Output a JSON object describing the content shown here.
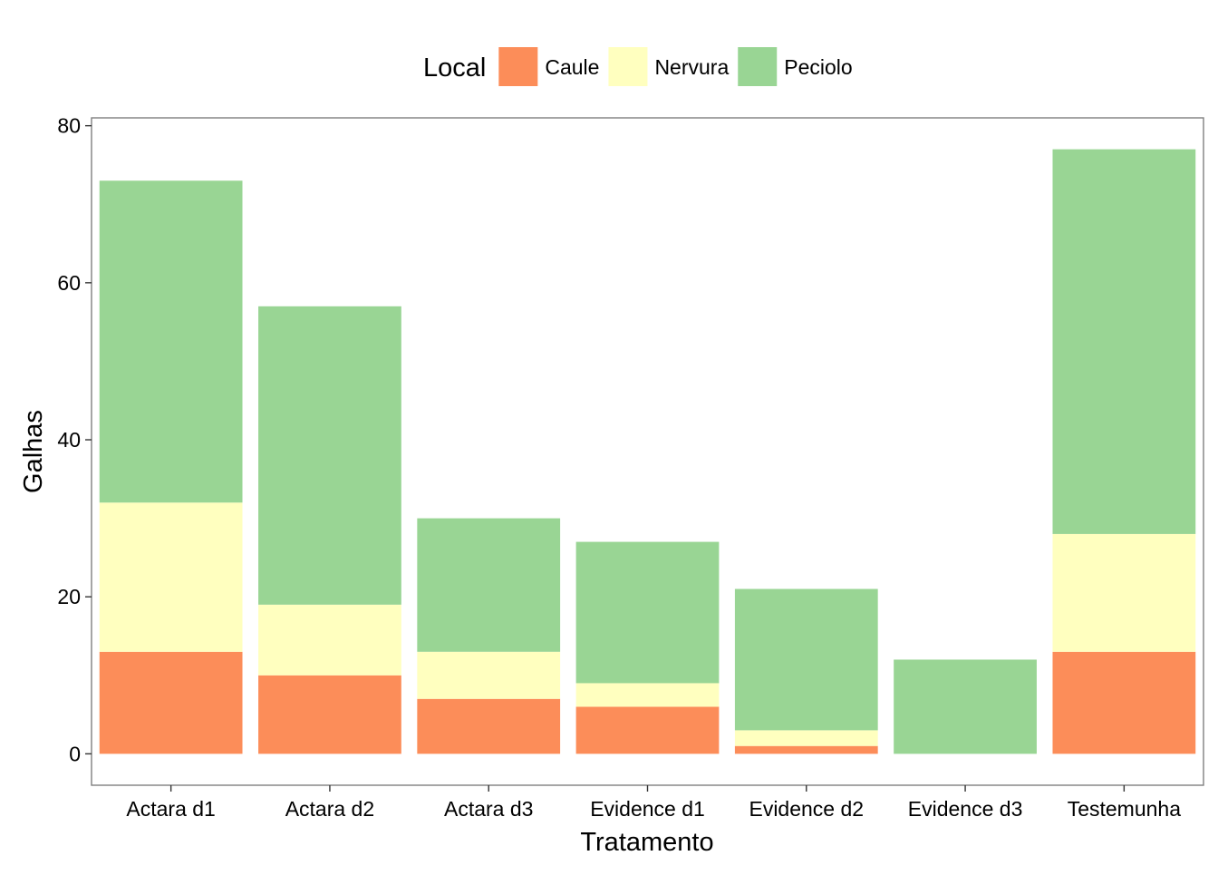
{
  "chart_data": {
    "type": "bar",
    "stacked": true,
    "xlabel": "Tratamento",
    "ylabel": "Galhas",
    "categories": [
      "Actara d1",
      "Actara d2",
      "Actara d3",
      "Evidence d1",
      "Evidence d2",
      "Evidence d3",
      "Testemunha"
    ],
    "ylim": [
      -4,
      81
    ],
    "yticks": [
      0,
      20,
      40,
      60,
      80
    ],
    "ytick_labels": [
      "0",
      "20",
      "40",
      "60",
      "80"
    ],
    "grid": false,
    "legend": {
      "title": "Local",
      "position": "top"
    },
    "series": [
      {
        "name": "Caule",
        "color": "#FC8D59",
        "values": [
          13,
          10,
          7,
          6,
          1,
          0,
          13
        ]
      },
      {
        "name": "Nervura",
        "color": "#FFFFBF",
        "values": [
          19,
          9,
          6,
          3,
          2,
          0,
          15
        ]
      },
      {
        "name": "Peciolo",
        "color": "#99D594",
        "values": [
          41,
          38,
          17,
          18,
          18,
          12,
          49
        ]
      }
    ]
  }
}
